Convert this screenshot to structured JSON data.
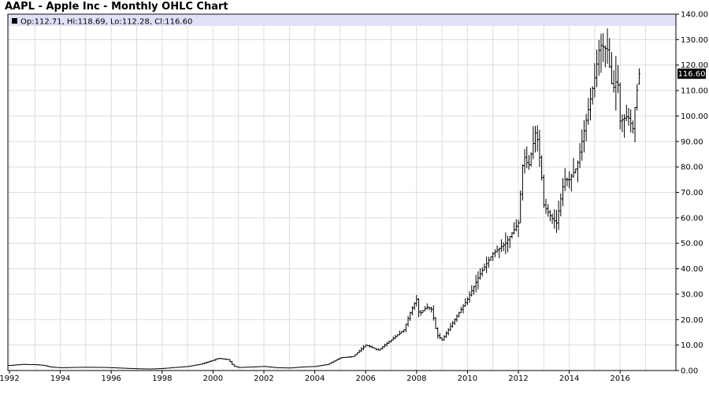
{
  "chart_data": {
    "type": "ohlc",
    "title": "AAPL - Apple Inc - Monthly OHLC Chart",
    "info": "Op:112.71, Hi:118.69, Lo:112.28, Cl:116.60",
    "last_price_label": "116.60",
    "last_price": 116.6,
    "xlabel": "",
    "ylabel": "",
    "ylim": [
      0,
      140
    ],
    "xlim": [
      1992.0,
      2017.6
    ],
    "y_ticks": [
      "0.00",
      "10.00",
      "20.00",
      "30.00",
      "40.00",
      "50.00",
      "60.00",
      "70.00",
      "80.00",
      "90.00",
      "100.00",
      "110.00",
      "120.00",
      "130.00",
      "140.00"
    ],
    "x_ticks": [
      "1992",
      "1994",
      "1996",
      "1998",
      "2000",
      "2002",
      "2004",
      "2006",
      "2008",
      "2010",
      "2012",
      "2014",
      "2016"
    ],
    "grid": true,
    "y_axis_side": "right",
    "bar_color": "#000000",
    "info_bar_color": "#e0e0f8",
    "price_tag_color": "#000000",
    "anchors": [
      [
        1992.0,
        2.0
      ],
      [
        1992.5,
        2.4
      ],
      [
        1993.0,
        2.3
      ],
      [
        1993.3,
        2.1
      ],
      [
        1993.6,
        1.4
      ],
      [
        1994.0,
        1.1
      ],
      [
        1995.0,
        1.3
      ],
      [
        1995.8,
        1.2
      ],
      [
        1996.5,
        0.9
      ],
      [
        1997.0,
        0.7
      ],
      [
        1997.5,
        0.6
      ],
      [
        1998.0,
        0.8
      ],
      [
        1998.5,
        1.2
      ],
      [
        1999.0,
        1.6
      ],
      [
        1999.5,
        2.5
      ],
      [
        2000.0,
        4.0
      ],
      [
        2000.2,
        4.8
      ],
      [
        2000.6,
        4.3
      ],
      [
        2000.8,
        1.8
      ],
      [
        2001.0,
        1.2
      ],
      [
        2002.0,
        1.6
      ],
      [
        2002.5,
        1.1
      ],
      [
        2003.0,
        1.0
      ],
      [
        2003.5,
        1.4
      ],
      [
        2004.0,
        1.6
      ],
      [
        2004.5,
        2.4
      ],
      [
        2005.0,
        5.0
      ],
      [
        2005.5,
        5.5
      ],
      [
        2006.0,
        10.0
      ],
      [
        2006.5,
        8.0
      ],
      [
        2007.0,
        12.0
      ],
      [
        2007.5,
        16.0
      ],
      [
        2007.8,
        24.0
      ],
      [
        2008.0,
        28.0
      ],
      [
        2008.1,
        22.0
      ],
      [
        2008.4,
        25.0
      ],
      [
        2008.6,
        24.0
      ],
      [
        2008.8,
        14.0
      ],
      [
        2009.0,
        12.0
      ],
      [
        2009.5,
        20.0
      ],
      [
        2010.0,
        28.0
      ],
      [
        2010.5,
        38.0
      ],
      [
        2011.0,
        46.0
      ],
      [
        2011.5,
        50.0
      ],
      [
        2012.0,
        58.0
      ],
      [
        2012.2,
        85.0
      ],
      [
        2012.4,
        80.0
      ],
      [
        2012.7,
        95.0
      ],
      [
        2012.9,
        78.0
      ],
      [
        2013.0,
        65.0
      ],
      [
        2013.3,
        60.0
      ],
      [
        2013.5,
        58.0
      ],
      [
        2013.8,
        75.0
      ],
      [
        2014.0,
        75.0
      ],
      [
        2014.3,
        80.0
      ],
      [
        2014.6,
        95.0
      ],
      [
        2014.8,
        105.0
      ],
      [
        2015.0,
        115.0
      ],
      [
        2015.2,
        128.0
      ],
      [
        2015.5,
        126.0
      ],
      [
        2015.7,
        110.0
      ],
      [
        2015.9,
        115.0
      ],
      [
        2016.0,
        98.0
      ],
      [
        2016.3,
        100.0
      ],
      [
        2016.5,
        95.0
      ],
      [
        2016.6,
        105.0
      ],
      [
        2016.75,
        116.6
      ]
    ]
  }
}
